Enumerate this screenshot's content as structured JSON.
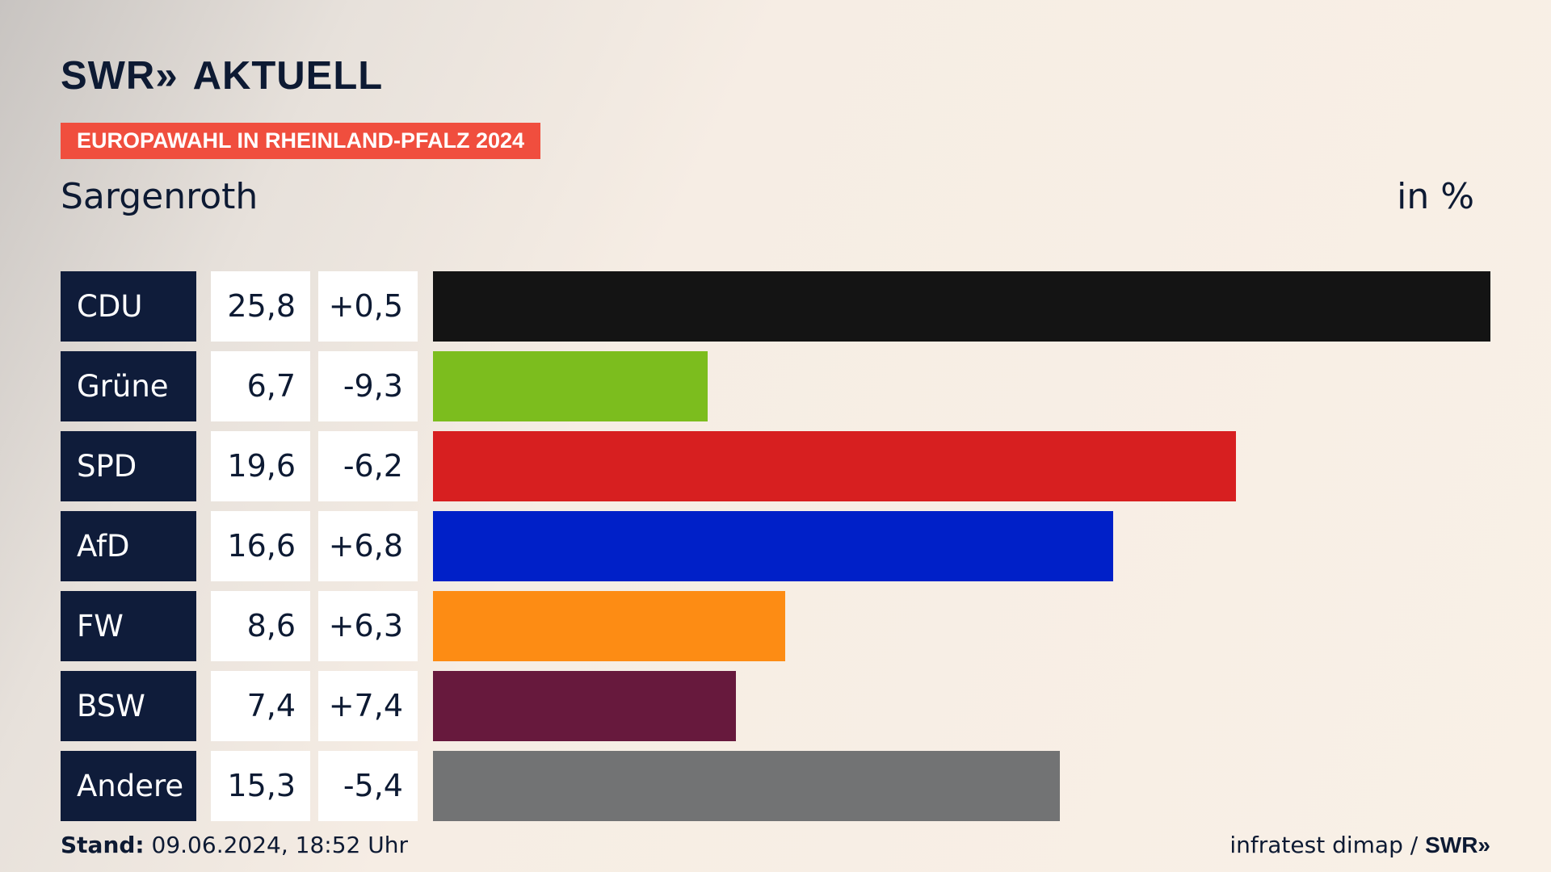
{
  "brand": {
    "logo_left": "SWR",
    "logo_chevrons": "»",
    "logo_right": "AKTUELL"
  },
  "badge": "EUROPAWAHL IN RHEINLAND-PFALZ 2024",
  "place": "Sargenroth",
  "unit": "in %",
  "footer": {
    "stand_label": "Stand:",
    "stand_value": "09.06.2024, 18:52 Uhr",
    "source": "infratest dimap / ",
    "source_brand": "SWR»"
  },
  "chart_data": {
    "type": "bar",
    "orientation": "horizontal",
    "title": "Sargenroth",
    "unit": "in %",
    "xlim": [
      0,
      25.8
    ],
    "categories": [
      "CDU",
      "Grüne",
      "SPD",
      "AfD",
      "FW",
      "BSW",
      "Andere"
    ],
    "values": [
      25.8,
      6.7,
      19.6,
      16.6,
      8.6,
      7.4,
      15.3
    ],
    "value_labels": [
      "25,8",
      "6,7",
      "19,6",
      "16,6",
      "8,6",
      "7,4",
      "15,3"
    ],
    "changes": [
      "+0,5",
      "-9,3",
      "-6,2",
      "+6,8",
      "+6,3",
      "+7,4",
      "-5,4"
    ],
    "colors": [
      "#141414",
      "#7cbd1e",
      "#d71f20",
      "#0020c8",
      "#fd8c14",
      "#67193d",
      "#727374"
    ]
  }
}
